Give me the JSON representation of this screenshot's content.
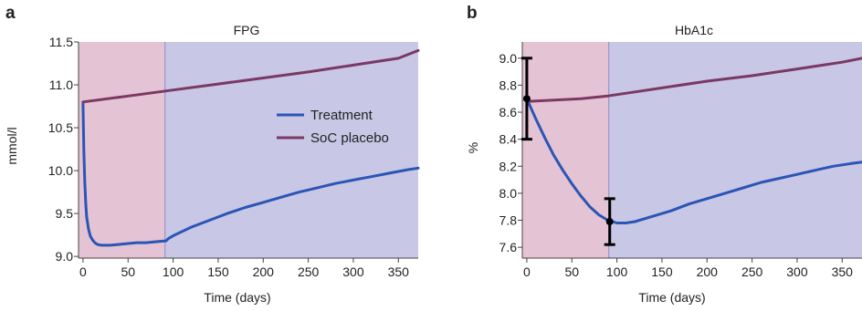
{
  "chart_data": [
    {
      "panel": "a",
      "type": "line",
      "title": "FPG",
      "xlabel": "Time (days)",
      "ylabel": "mmol/l",
      "xlim": [
        -5,
        372
      ],
      "ylim": [
        8.98,
        11.5
      ],
      "xticks": [
        0,
        50,
        100,
        150,
        200,
        250,
        300,
        350
      ],
      "yticks": [
        9.0,
        9.5,
        10.0,
        10.5,
        11.0,
        11.5
      ],
      "ytick_labels": [
        "9.0",
        "9.5",
        "10.0",
        "10.5",
        "11.0",
        "11.5"
      ],
      "shaded_regions": [
        {
          "x": [
            -5,
            91
          ],
          "color": "#e4c4d4"
        },
        {
          "x": [
            91,
            372
          ],
          "color": "#c9c7e6"
        }
      ],
      "legend": {
        "position": "right-middle",
        "entries": [
          "Treatment",
          "SoC placebo"
        ]
      },
      "series": [
        {
          "name": "Treatment",
          "color": "#2b55b5",
          "x": [
            0,
            1,
            2,
            3,
            4,
            6,
            8,
            10,
            13,
            16,
            20,
            25,
            30,
            40,
            50,
            60,
            70,
            80,
            90,
            92,
            95,
            100,
            110,
            120,
            140,
            160,
            180,
            200,
            220,
            240,
            260,
            280,
            300,
            320,
            340,
            360,
            372
          ],
          "y": [
            10.78,
            10.2,
            9.85,
            9.62,
            9.46,
            9.32,
            9.24,
            9.2,
            9.16,
            9.14,
            9.13,
            9.13,
            9.13,
            9.14,
            9.15,
            9.16,
            9.16,
            9.17,
            9.18,
            9.18,
            9.21,
            9.24,
            9.29,
            9.34,
            9.42,
            9.5,
            9.57,
            9.63,
            9.69,
            9.75,
            9.8,
            9.85,
            9.89,
            9.93,
            9.97,
            10.01,
            10.03
          ]
        },
        {
          "name": "SoC placebo",
          "color": "#7a3864",
          "x": [
            0,
            50,
            100,
            150,
            200,
            250,
            300,
            350,
            372
          ],
          "y": [
            10.8,
            10.87,
            10.94,
            11.01,
            11.08,
            11.15,
            11.23,
            11.31,
            11.4
          ]
        }
      ]
    },
    {
      "panel": "b",
      "type": "line",
      "title": "HbA1c",
      "xlabel": "Time (days)",
      "ylabel": "%",
      "xlim": [
        -5,
        372
      ],
      "ylim": [
        7.52,
        9.12
      ],
      "xticks": [
        0,
        50,
        100,
        150,
        200,
        250,
        300,
        350
      ],
      "yticks": [
        7.6,
        7.8,
        8.0,
        8.2,
        8.4,
        8.6,
        8.8,
        9.0
      ],
      "ytick_labels": [
        "7.6",
        "7.8",
        "8.0",
        "8.2",
        "8.4",
        "8.6",
        "8.8",
        "9.0"
      ],
      "shaded_regions": [
        {
          "x": [
            -5,
            91
          ],
          "color": "#e4c4d4"
        },
        {
          "x": [
            91,
            372
          ],
          "color": "#c9c7e6"
        }
      ],
      "series": [
        {
          "name": "Treatment",
          "color": "#2b55b5",
          "x": [
            0,
            10,
            20,
            30,
            40,
            50,
            60,
            70,
            80,
            90,
            100,
            110,
            120,
            140,
            160,
            180,
            200,
            220,
            240,
            260,
            280,
            300,
            320,
            340,
            360,
            372
          ],
          "y": [
            8.7,
            8.55,
            8.41,
            8.28,
            8.17,
            8.07,
            7.98,
            7.9,
            7.84,
            7.8,
            7.78,
            7.78,
            7.79,
            7.83,
            7.87,
            7.92,
            7.96,
            8.0,
            8.04,
            8.08,
            8.11,
            8.14,
            8.17,
            8.2,
            8.22,
            8.23
          ]
        },
        {
          "name": "SoC placebo",
          "color": "#7a3864",
          "x": [
            0,
            30,
            60,
            90,
            120,
            150,
            200,
            250,
            300,
            350,
            372
          ],
          "y": [
            8.68,
            8.69,
            8.7,
            8.72,
            8.75,
            8.78,
            8.83,
            8.87,
            8.92,
            8.97,
            9.0
          ]
        }
      ],
      "error_bars": [
        {
          "x": 0,
          "y": 8.7,
          "low": 8.4,
          "high": 9.0
        },
        {
          "x": 92,
          "y": 7.79,
          "low": 7.62,
          "high": 7.96
        }
      ]
    }
  ]
}
